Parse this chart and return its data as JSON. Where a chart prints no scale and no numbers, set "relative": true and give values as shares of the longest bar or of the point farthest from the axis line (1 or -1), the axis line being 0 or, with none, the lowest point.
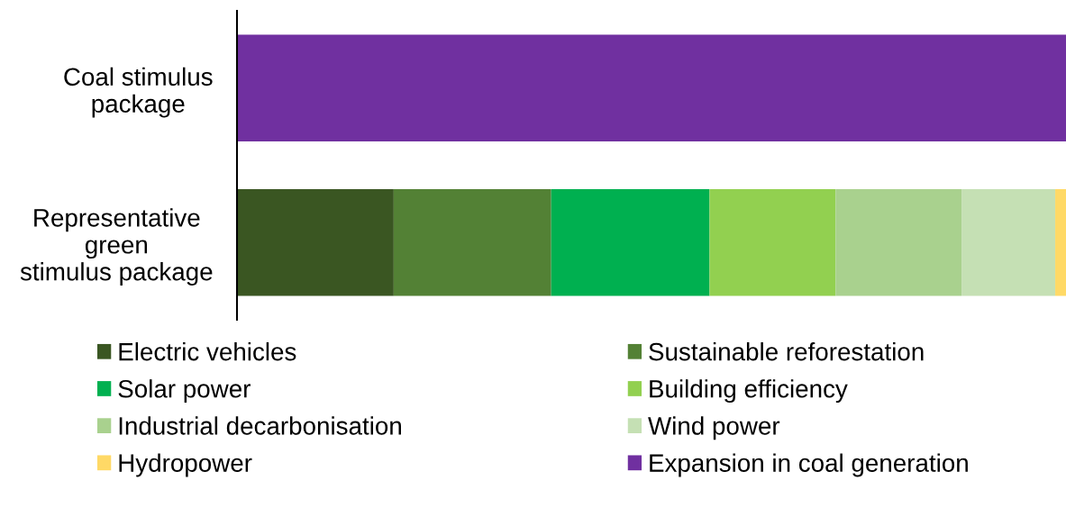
{
  "chart_data": {
    "type": "bar",
    "orientation": "horizontal",
    "stacked": true,
    "relative": true,
    "categories": [
      "Coal stimulus\npackage",
      "Representative\ngreen\nstimulus package"
    ],
    "series": [
      {
        "name": "Electric vehicles",
        "color": "#3a5622",
        "values": [
          null,
          0.189
        ]
      },
      {
        "name": "Sustainable reforestation",
        "color": "#538135",
        "values": [
          null,
          0.19
        ]
      },
      {
        "name": "Solar power",
        "color": "#00b050",
        "values": [
          null,
          0.191
        ]
      },
      {
        "name": "Building efficiency",
        "color": "#92d050",
        "values": [
          null,
          0.152
        ]
      },
      {
        "name": "Industrial decarbonisation",
        "color": "#a9d18e",
        "values": [
          null,
          0.152
        ]
      },
      {
        "name": "Wind power",
        "color": "#c5e0b4",
        "values": [
          null,
          0.113
        ]
      },
      {
        "name": "Hydropower",
        "color": "#ffd966",
        "values": [
          null,
          0.013
        ]
      },
      {
        "name": "Expansion in coal generation",
        "color": "#7030a0",
        "values": [
          1,
          null
        ]
      }
    ],
    "legend": "bottom"
  }
}
